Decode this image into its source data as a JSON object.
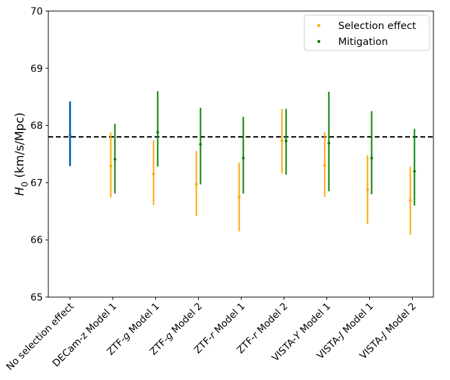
{
  "chart_data": {
    "type": "scatter",
    "title": "",
    "xlabel": "",
    "ylabel": {
      "main": "H",
      "sub": "0",
      "unit": " (km/s/Mpc)"
    },
    "ylim": [
      65,
      70
    ],
    "yticks": [
      65,
      66,
      67,
      68,
      69,
      70
    ],
    "reference_line": {
      "value": 67.8,
      "style": "dashed",
      "color": "#000000"
    },
    "categories": [
      {
        "plain": "No selection effect"
      },
      {
        "plain": "DECam-z Model 1"
      },
      {
        "pre": "ZTF-",
        "it": "g",
        "post": " Model 1"
      },
      {
        "pre": "ZTF-",
        "it": "g",
        "post": " Model 2"
      },
      {
        "pre": "ZTF-",
        "it": "r",
        "post": " Model 1"
      },
      {
        "pre": "ZTF-",
        "it": "r",
        "post": " Model 2"
      },
      {
        "pre": "VISTA-",
        "it": "Y",
        "post": " Model 1"
      },
      {
        "pre": "VISTA-",
        "it": "J",
        "post": " Model 1"
      },
      {
        "pre": "VISTA-",
        "it": "J",
        "post": " Model 2"
      }
    ],
    "series": [
      {
        "key": "baseline",
        "color": "#1f77b4",
        "points": [
          {
            "category": 0,
            "y": 67.83,
            "lo": 67.29,
            "hi": 68.42
          }
        ]
      },
      {
        "key": "selection",
        "name": "Selection effect",
        "color": "#ffa500",
        "points": [
          {
            "category": 1,
            "y": 67.29,
            "lo": 66.74,
            "hi": 67.88
          },
          {
            "category": 2,
            "y": 67.15,
            "lo": 66.61,
            "hi": 67.74
          },
          {
            "category": 3,
            "y": 66.97,
            "lo": 66.42,
            "hi": 67.55
          },
          {
            "category": 4,
            "y": 66.75,
            "lo": 66.15,
            "hi": 67.35
          },
          {
            "category": 5,
            "y": 67.73,
            "lo": 67.16,
            "hi": 68.29
          },
          {
            "category": 6,
            "y": 67.3,
            "lo": 66.75,
            "hi": 67.88
          },
          {
            "category": 7,
            "y": 66.88,
            "lo": 66.28,
            "hi": 67.48
          },
          {
            "category": 8,
            "y": 66.69,
            "lo": 66.09,
            "hi": 67.28
          }
        ]
      },
      {
        "key": "mitigation",
        "name": "Mitigation",
        "color": "#008000",
        "points": [
          {
            "category": 1,
            "y": 67.41,
            "lo": 66.81,
            "hi": 68.03
          },
          {
            "category": 2,
            "y": 67.88,
            "lo": 67.28,
            "hi": 68.6
          },
          {
            "category": 3,
            "y": 67.67,
            "lo": 66.97,
            "hi": 68.31
          },
          {
            "category": 4,
            "y": 67.43,
            "lo": 66.81,
            "hi": 68.15
          },
          {
            "category": 5,
            "y": 67.73,
            "lo": 67.14,
            "hi": 68.29
          },
          {
            "category": 6,
            "y": 67.69,
            "lo": 66.85,
            "hi": 68.59
          },
          {
            "category": 7,
            "y": 67.43,
            "lo": 66.8,
            "hi": 68.25
          },
          {
            "category": 8,
            "y": 67.2,
            "lo": 66.6,
            "hi": 67.94
          }
        ]
      }
    ],
    "legend": {
      "position": "top-right",
      "items": [
        "Selection effect",
        "Mitigation"
      ]
    },
    "grid": false
  }
}
